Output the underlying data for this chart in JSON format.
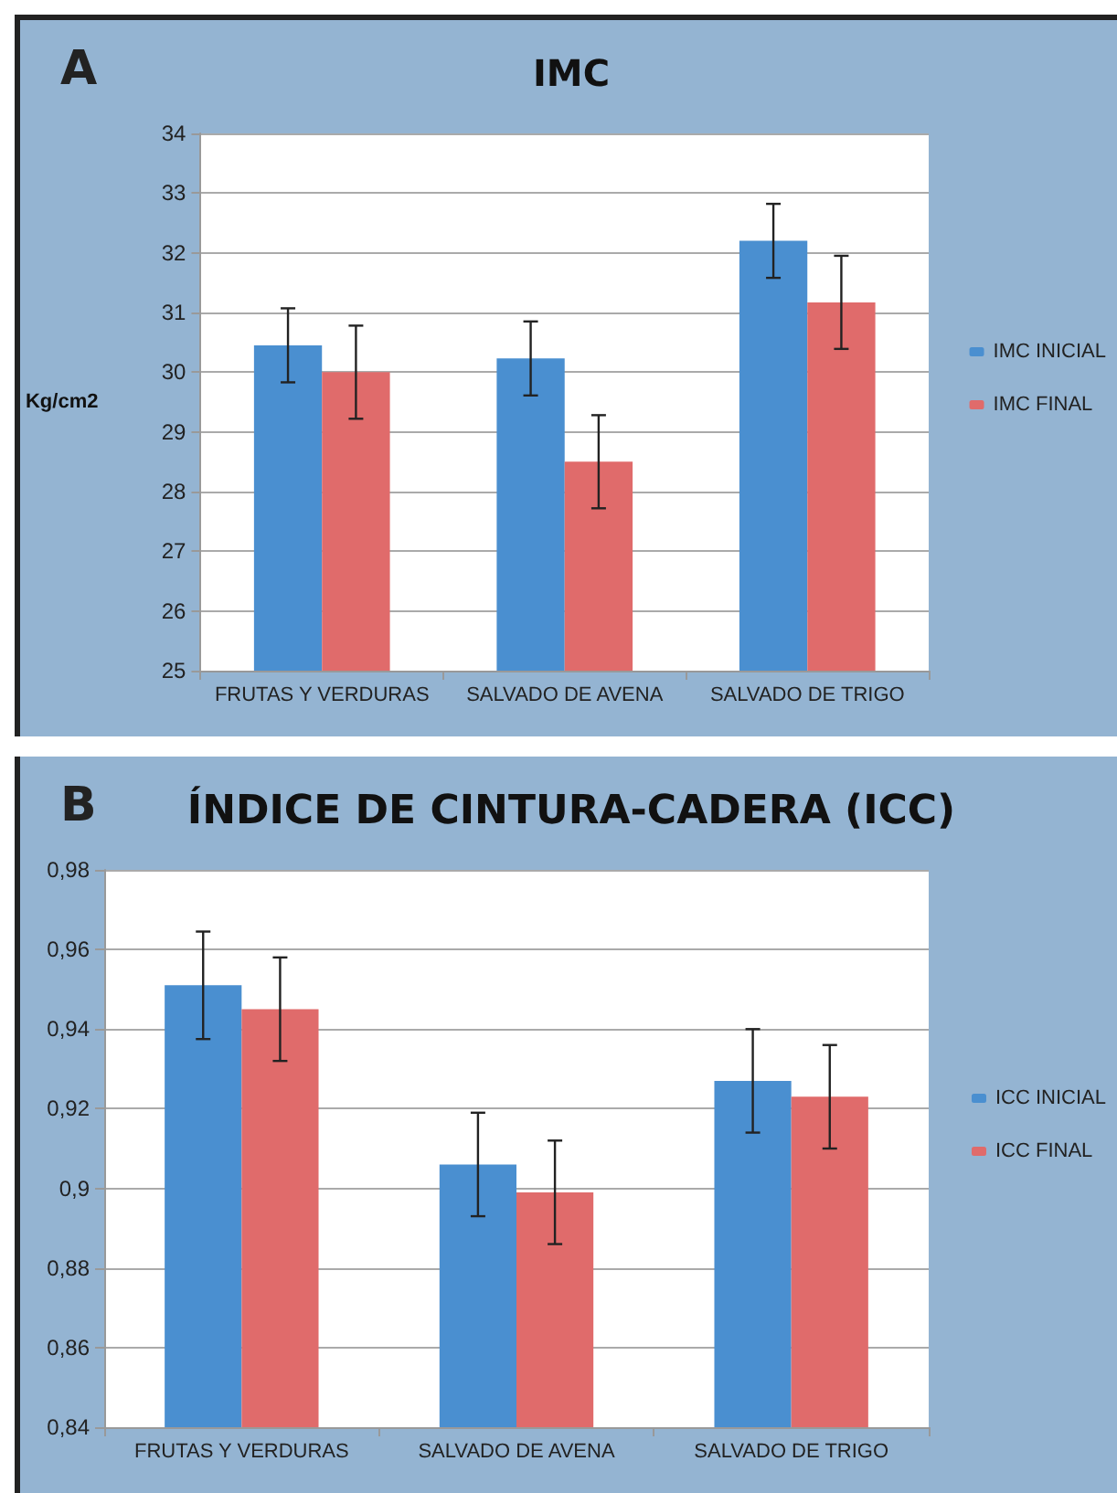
{
  "chart_data": [
    {
      "type": "bar",
      "title": "IMC",
      "ylabel": "Kg/cm2",
      "annotations": [
        "A"
      ],
      "categories": [
        "FRUTAS Y VERDURAS",
        "SALVADO DE AVENA",
        "SALVADO DE TRIGO"
      ],
      "series": [
        {
          "name": "IMC INICIAL",
          "color": "#4a8fd0",
          "values": [
            30.45,
            30.23,
            32.2
          ],
          "errors": [
            0.62,
            0.62,
            0.62
          ]
        },
        {
          "name": "IMC FINAL",
          "color": "#e06b6b",
          "values": [
            30.0,
            28.5,
            31.17
          ],
          "errors": [
            0.78,
            0.78,
            0.78
          ]
        }
      ],
      "ylim": [
        25,
        34
      ],
      "yticks": [
        25,
        26,
        27,
        28,
        29,
        30,
        31,
        32,
        33,
        34
      ],
      "grid": "y",
      "legend": "right"
    },
    {
      "type": "bar",
      "title": "ÍNDICE DE CINTURA-CADERA (ICC)",
      "annotations": [
        "B"
      ],
      "categories": [
        "FRUTAS Y VERDURAS",
        "SALVADO DE AVENA",
        "SALVADO DE TRIGO"
      ],
      "series": [
        {
          "name": "ICC INICIAL",
          "color": "#4a8fd0",
          "values": [
            0.951,
            0.906,
            0.927
          ],
          "errors": [
            0.0135,
            0.013,
            0.013
          ]
        },
        {
          "name": "ICC FINAL",
          "color": "#e06b6b",
          "values": [
            0.945,
            0.899,
            0.923
          ],
          "errors": [
            0.013,
            0.013,
            0.013
          ]
        }
      ],
      "ylim": [
        0.84,
        0.98
      ],
      "yticks": [
        {
          "value": 0.84,
          "label": "0,84"
        },
        {
          "value": 0.86,
          "label": "0,86"
        },
        {
          "value": 0.88,
          "label": "0,88"
        },
        {
          "value": 0.9,
          "label": "0,9"
        },
        {
          "value": 0.92,
          "label": "0,92"
        },
        {
          "value": 0.94,
          "label": "0,94"
        },
        {
          "value": 0.96,
          "label": "0,96"
        },
        {
          "value": 0.98,
          "label": "0,98"
        }
      ],
      "grid": "y",
      "legend": "right"
    }
  ]
}
